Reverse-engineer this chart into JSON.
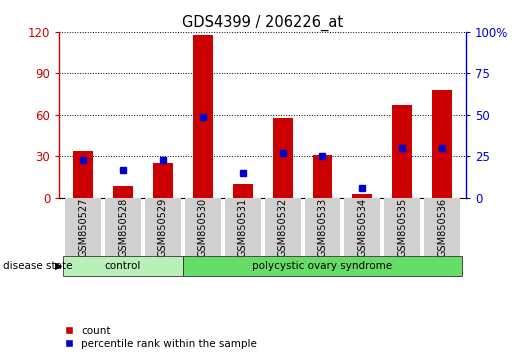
{
  "title": "GDS4399 / 206226_at",
  "samples": [
    "GSM850527",
    "GSM850528",
    "GSM850529",
    "GSM850530",
    "GSM850531",
    "GSM850532",
    "GSM850533",
    "GSM850534",
    "GSM850535",
    "GSM850536"
  ],
  "count_values": [
    34,
    9,
    25,
    118,
    10,
    58,
    31,
    3,
    67,
    78
  ],
  "percentile_values": [
    23,
    17,
    23,
    49,
    15,
    27,
    25,
    6,
    30,
    30
  ],
  "bar_color": "#cc0000",
  "marker_color": "#0000cc",
  "ylim_left": [
    0,
    120
  ],
  "ylim_right": [
    0,
    100
  ],
  "yticks_left": [
    0,
    30,
    60,
    90,
    120
  ],
  "yticks_right": [
    0,
    25,
    50,
    75,
    100
  ],
  "ytick_labels_right": [
    "0",
    "25",
    "50",
    "75",
    "100%"
  ],
  "left_yaxis_color": "#cc0000",
  "right_yaxis_color": "#0000cc",
  "groups": [
    {
      "label": "control",
      "indices": [
        0,
        1,
        2
      ],
      "color": "#b8f0b8"
    },
    {
      "label": "polycystic ovary syndrome",
      "indices": [
        3,
        4,
        5,
        6,
        7,
        8,
        9
      ],
      "color": "#66dd66"
    }
  ],
  "disease_state_label": "disease state",
  "legend_count_label": "count",
  "legend_percentile_label": "percentile rank within the sample",
  "tick_label_bg": "#d0d0d0",
  "background_color": "#ffffff"
}
